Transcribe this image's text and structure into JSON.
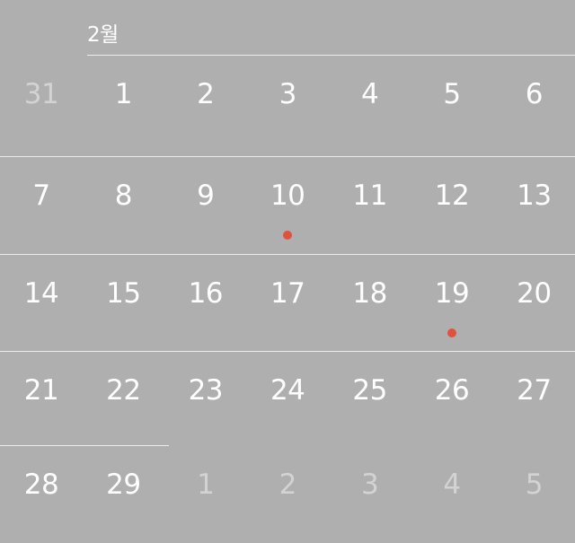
{
  "header": {
    "month_label": "2월"
  },
  "colors": {
    "background": "#afafaf",
    "divider": "#ececec",
    "day_text": "#ffffff",
    "other_month_text": "#d3d3d3",
    "event_dot": "#e0523c"
  },
  "weeks": [
    [
      {
        "label": "31",
        "current_month": false,
        "has_event": false
      },
      {
        "label": "1",
        "current_month": true,
        "has_event": false
      },
      {
        "label": "2",
        "current_month": true,
        "has_event": false
      },
      {
        "label": "3",
        "current_month": true,
        "has_event": false
      },
      {
        "label": "4",
        "current_month": true,
        "has_event": false
      },
      {
        "label": "5",
        "current_month": true,
        "has_event": false
      },
      {
        "label": "6",
        "current_month": true,
        "has_event": false
      }
    ],
    [
      {
        "label": "7",
        "current_month": true,
        "has_event": false
      },
      {
        "label": "8",
        "current_month": true,
        "has_event": false
      },
      {
        "label": "9",
        "current_month": true,
        "has_event": false
      },
      {
        "label": "10",
        "current_month": true,
        "has_event": true
      },
      {
        "label": "11",
        "current_month": true,
        "has_event": false
      },
      {
        "label": "12",
        "current_month": true,
        "has_event": false
      },
      {
        "label": "13",
        "current_month": true,
        "has_event": false
      }
    ],
    [
      {
        "label": "14",
        "current_month": true,
        "has_event": false
      },
      {
        "label": "15",
        "current_month": true,
        "has_event": false
      },
      {
        "label": "16",
        "current_month": true,
        "has_event": false
      },
      {
        "label": "17",
        "current_month": true,
        "has_event": false
      },
      {
        "label": "18",
        "current_month": true,
        "has_event": false
      },
      {
        "label": "19",
        "current_month": true,
        "has_event": true
      },
      {
        "label": "20",
        "current_month": true,
        "has_event": false
      }
    ],
    [
      {
        "label": "21",
        "current_month": true,
        "has_event": false
      },
      {
        "label": "22",
        "current_month": true,
        "has_event": false
      },
      {
        "label": "23",
        "current_month": true,
        "has_event": false
      },
      {
        "label": "24",
        "current_month": true,
        "has_event": false
      },
      {
        "label": "25",
        "current_month": true,
        "has_event": false
      },
      {
        "label": "26",
        "current_month": true,
        "has_event": false
      },
      {
        "label": "27",
        "current_month": true,
        "has_event": false
      }
    ],
    [
      {
        "label": "28",
        "current_month": true,
        "has_event": false
      },
      {
        "label": "29",
        "current_month": true,
        "has_event": false
      },
      {
        "label": "1",
        "current_month": false,
        "has_event": false
      },
      {
        "label": "2",
        "current_month": false,
        "has_event": false
      },
      {
        "label": "3",
        "current_month": false,
        "has_event": false
      },
      {
        "label": "4",
        "current_month": false,
        "has_event": false
      },
      {
        "label": "5",
        "current_month": false,
        "has_event": false
      }
    ]
  ]
}
